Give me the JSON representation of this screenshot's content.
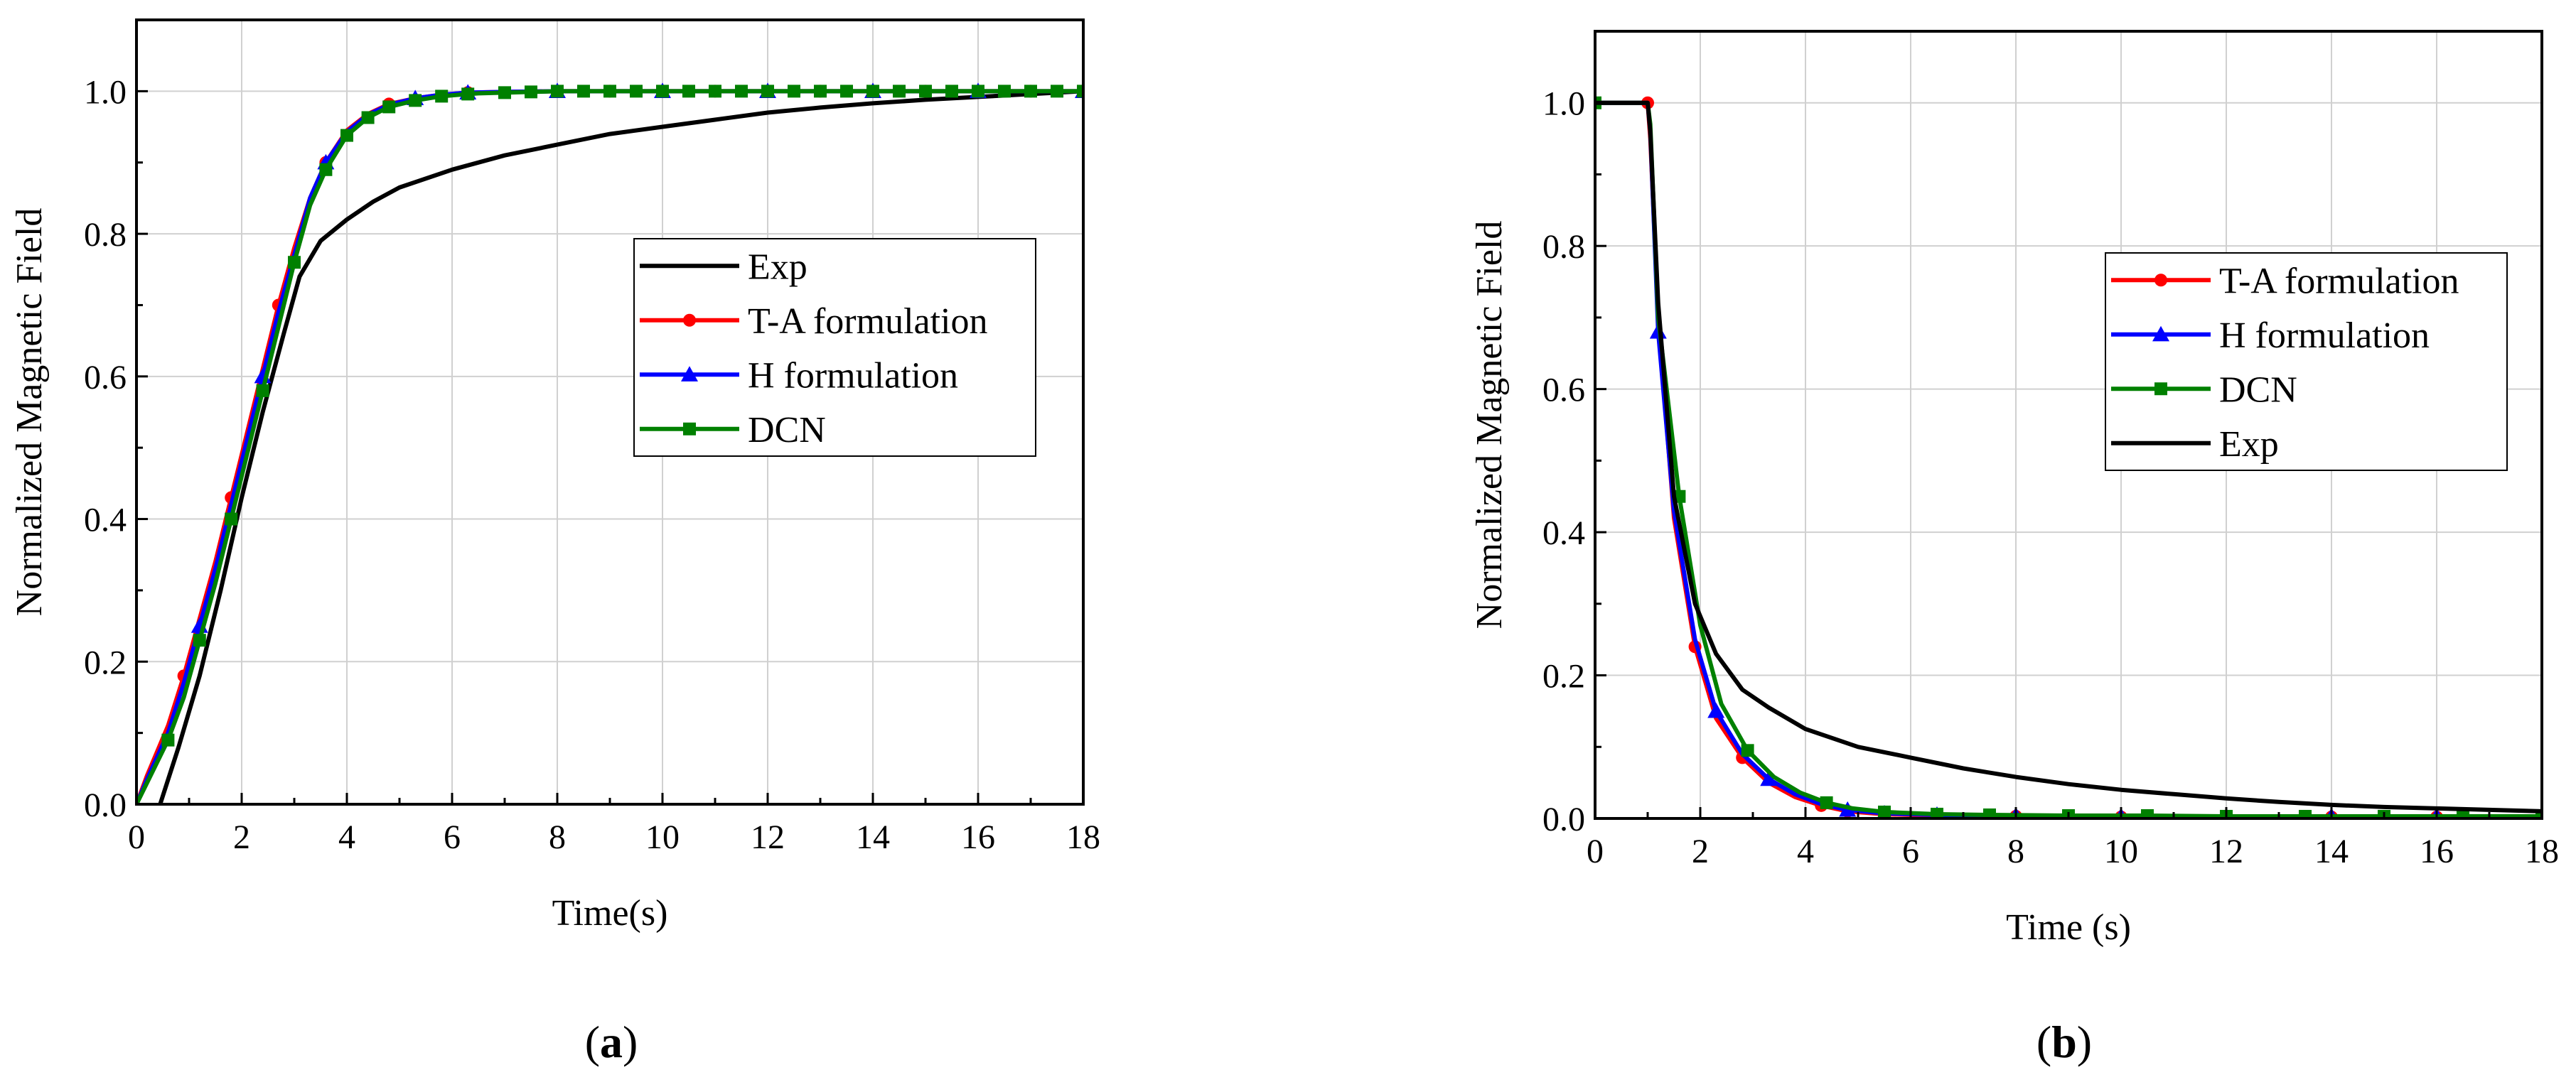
{
  "chart_data": [
    {
      "panel": "a",
      "type": "line",
      "caption": "(a)",
      "caption_letter": "a",
      "xlabel": "Time(s)",
      "ylabel": "Normalized Magnetic Field",
      "xlim": [
        0,
        18
      ],
      "ylim": [
        0,
        1.1
      ],
      "xticks": [
        0,
        2,
        4,
        6,
        8,
        10,
        12,
        14,
        16,
        18
      ],
      "yticks": [
        0.0,
        0.2,
        0.4,
        0.6,
        0.8,
        1.0
      ],
      "ytick_labels": [
        "0.0",
        "0.2",
        "0.4",
        "0.6",
        "0.8",
        "1.0"
      ],
      "grid": true,
      "legend_position": "center-right",
      "series": [
        {
          "name": "Exp",
          "color": "#000000",
          "marker": "none",
          "x": [
            0.45,
            0.8,
            1.2,
            1.6,
            2.0,
            2.4,
            2.8,
            3.1,
            3.5,
            4.0,
            4.5,
            5.0,
            6.0,
            7.0,
            8.0,
            9.0,
            10.0,
            11.0,
            12.0,
            13.0,
            14.0,
            15.0,
            16.0,
            17.0,
            18.0
          ],
          "y": [
            0.0,
            0.08,
            0.18,
            0.3,
            0.43,
            0.55,
            0.66,
            0.74,
            0.79,
            0.82,
            0.845,
            0.865,
            0.89,
            0.91,
            0.925,
            0.94,
            0.95,
            0.96,
            0.97,
            0.977,
            0.983,
            0.988,
            0.992,
            0.996,
            1.0
          ]
        },
        {
          "name": "T-A formulation",
          "color": "#ff0000",
          "marker": "circle",
          "x": [
            0.0,
            0.2,
            0.6,
            0.9,
            1.2,
            1.5,
            1.8,
            2.1,
            2.4,
            2.7,
            3.0,
            3.3,
            3.6,
            4.0,
            4.4,
            4.8,
            5.3,
            5.8,
            6.3,
            7.0,
            8.0,
            9.0,
            10.0,
            11.0,
            12.0,
            13.0,
            14.0,
            15.0,
            16.0,
            17.0,
            18.0
          ],
          "y": [
            0.0,
            0.04,
            0.11,
            0.18,
            0.26,
            0.34,
            0.43,
            0.52,
            0.61,
            0.7,
            0.78,
            0.85,
            0.9,
            0.945,
            0.968,
            0.982,
            0.99,
            0.995,
            0.998,
            0.999,
            1.0,
            1.0,
            1.0,
            1.0,
            1.0,
            1.0,
            1.0,
            1.0,
            1.0,
            1.0,
            1.0
          ],
          "marker_indices": [
            3,
            6,
            9,
            12,
            15,
            18,
            20,
            21,
            22,
            23,
            24,
            25,
            26,
            27,
            28,
            29
          ]
        },
        {
          "name": "H formulation",
          "color": "#0000ff",
          "marker": "triangle",
          "x": [
            0.0,
            0.2,
            0.6,
            0.9,
            1.2,
            1.5,
            1.8,
            2.1,
            2.4,
            2.7,
            3.0,
            3.3,
            3.6,
            4.0,
            4.4,
            4.8,
            5.3,
            5.8,
            6.3,
            7.0,
            8.0,
            9.0,
            10.0,
            11.0,
            12.0,
            13.0,
            14.0,
            15.0,
            16.0,
            17.0,
            18.0
          ],
          "y": [
            0.0,
            0.035,
            0.1,
            0.17,
            0.25,
            0.33,
            0.42,
            0.51,
            0.6,
            0.69,
            0.77,
            0.85,
            0.9,
            0.943,
            0.967,
            0.981,
            0.99,
            0.995,
            0.998,
            0.999,
            1.0,
            1.0,
            1.0,
            1.0,
            1.0,
            1.0,
            1.0,
            1.0,
            1.0,
            1.0,
            1.0
          ],
          "marker_indices": [
            4,
            8,
            12,
            16,
            18,
            20,
            22,
            24,
            26,
            28,
            30
          ]
        },
        {
          "name": "DCN",
          "color": "#008000",
          "marker": "square",
          "x": [
            0.0,
            0.2,
            0.6,
            0.9,
            1.2,
            1.5,
            1.8,
            2.1,
            2.4,
            2.7,
            3.0,
            3.3,
            3.6,
            4.0,
            4.4,
            4.8,
            5.3,
            5.8,
            6.3,
            6.5,
            7.0,
            7.5,
            8.0,
            8.5,
            9.0,
            9.5,
            10.0,
            10.5,
            11.0,
            11.5,
            12.0,
            12.5,
            13.0,
            13.5,
            14.0,
            14.5,
            15.0,
            15.5,
            16.0,
            16.5,
            17.0,
            17.5,
            18.0
          ],
          "y": [
            0.0,
            0.03,
            0.09,
            0.15,
            0.23,
            0.31,
            0.4,
            0.49,
            0.58,
            0.67,
            0.76,
            0.84,
            0.89,
            0.938,
            0.963,
            0.978,
            0.987,
            0.993,
            0.996,
            0.997,
            0.998,
            0.999,
            1.0,
            1.0,
            1.0,
            1.0,
            1.0,
            1.0,
            1.0,
            1.0,
            1.0,
            1.0,
            1.0,
            1.0,
            1.0,
            1.0,
            1.0,
            1.0,
            1.0,
            1.0,
            1.0,
            1.0,
            1.0
          ],
          "marker_indices": [
            2,
            4,
            6,
            8,
            10,
            12,
            13,
            14,
            15,
            16,
            17,
            18,
            20,
            21,
            22,
            23,
            24,
            25,
            26,
            27,
            28,
            29,
            30,
            31,
            32,
            33,
            34,
            35,
            36,
            37,
            38,
            39,
            40,
            41,
            42
          ]
        }
      ],
      "legend_order": [
        "Exp",
        "T-A formulation",
        "H formulation",
        "DCN"
      ]
    },
    {
      "panel": "b",
      "type": "line",
      "caption": "(b)",
      "caption_letter": "b",
      "xlabel": "Time (s)",
      "ylabel": "Normalized Magnetic Field",
      "xlim": [
        0,
        18
      ],
      "ylim": [
        0,
        1.1
      ],
      "xticks": [
        0,
        2,
        4,
        6,
        8,
        10,
        12,
        14,
        16,
        18
      ],
      "yticks": [
        0.0,
        0.2,
        0.4,
        0.6,
        0.8,
        1.0
      ],
      "ytick_labels": [
        "0.0",
        "0.2",
        "0.4",
        "0.6",
        "0.8",
        "1.0"
      ],
      "grid": true,
      "legend_position": "upper-right",
      "series": [
        {
          "name": "T-A formulation",
          "color": "#ff0000",
          "marker": "circle",
          "x": [
            0.0,
            1.0,
            1.05,
            1.2,
            1.5,
            1.9,
            2.3,
            2.8,
            3.3,
            3.8,
            4.3,
            4.8,
            5.5,
            6.5,
            8.0,
            10.0,
            12.0,
            14.0,
            16.0,
            18.0
          ],
          "y": [
            1.0,
            1.0,
            0.95,
            0.7,
            0.42,
            0.24,
            0.14,
            0.085,
            0.05,
            0.03,
            0.018,
            0.01,
            0.006,
            0.004,
            0.003,
            0.002,
            0.002,
            0.002,
            0.002,
            0.002
          ],
          "marker_indices": [
            1,
            5,
            7,
            10,
            11,
            12,
            13,
            14,
            15,
            16,
            17,
            18
          ]
        },
        {
          "name": "H formulation",
          "color": "#0000ff",
          "marker": "triangle",
          "x": [
            0.0,
            1.0,
            1.05,
            1.2,
            1.5,
            1.9,
            2.3,
            2.8,
            3.3,
            3.8,
            4.3,
            4.8,
            5.5,
            6.5,
            8.0,
            10.0,
            12.0,
            14.0,
            16.0,
            18.0
          ],
          "y": [
            1.0,
            1.0,
            0.96,
            0.68,
            0.43,
            0.25,
            0.15,
            0.09,
            0.055,
            0.034,
            0.02,
            0.012,
            0.007,
            0.005,
            0.004,
            0.003,
            0.003,
            0.003,
            0.003,
            0.003
          ],
          "marker_indices": [
            3,
            6,
            8,
            11,
            12,
            13,
            14,
            15,
            16,
            17,
            18
          ]
        },
        {
          "name": "DCN",
          "color": "#008000",
          "marker": "square",
          "x": [
            0.0,
            1.0,
            1.05,
            1.2,
            1.6,
            2.0,
            2.4,
            2.9,
            3.4,
            3.9,
            4.4,
            4.9,
            5.5,
            6.5,
            7.5,
            9.0,
            10.5,
            12.0,
            13.5,
            15.0,
            16.5,
            18.0
          ],
          "y": [
            1.0,
            1.0,
            0.97,
            0.7,
            0.45,
            0.27,
            0.16,
            0.095,
            0.058,
            0.036,
            0.022,
            0.014,
            0.009,
            0.006,
            0.005,
            0.004,
            0.004,
            0.003,
            0.003,
            0.003,
            0.003,
            0.003
          ],
          "marker_indices": [
            0,
            4,
            7,
            10,
            12,
            13,
            14,
            15,
            16,
            17,
            18,
            19,
            20,
            21
          ]
        },
        {
          "name": "Exp",
          "color": "#000000",
          "marker": "none",
          "x": [
            0.0,
            1.0,
            1.05,
            1.2,
            1.5,
            1.9,
            2.3,
            2.8,
            3.3,
            4.0,
            5.0,
            6.0,
            7.0,
            8.0,
            9.0,
            10.0,
            11.0,
            12.0,
            13.0,
            14.0,
            15.0,
            16.0,
            17.0,
            18.0
          ],
          "y": [
            1.0,
            1.0,
            0.96,
            0.72,
            0.45,
            0.3,
            0.23,
            0.18,
            0.155,
            0.125,
            0.1,
            0.085,
            0.07,
            0.058,
            0.048,
            0.04,
            0.034,
            0.028,
            0.023,
            0.019,
            0.016,
            0.014,
            0.012,
            0.01
          ]
        }
      ],
      "legend_order": [
        "T-A formulation",
        "H formulation",
        "DCN",
        "Exp"
      ]
    }
  ]
}
